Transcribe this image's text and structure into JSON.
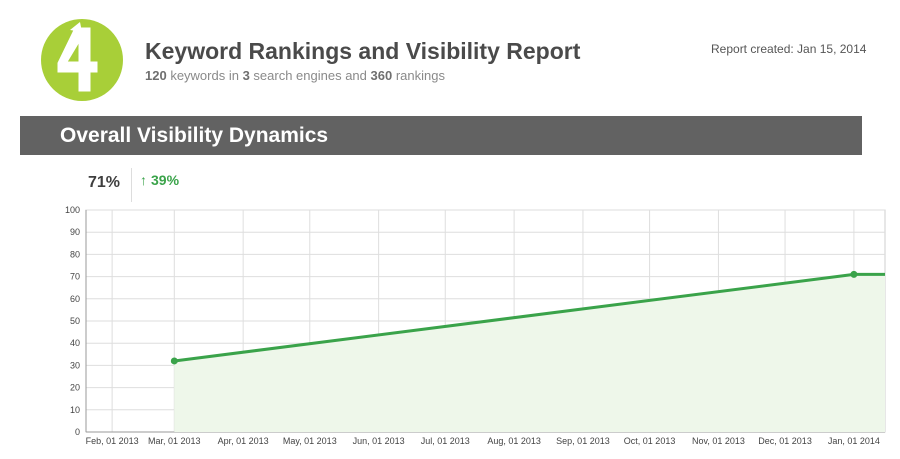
{
  "header": {
    "title": "Keyword Rankings and Visibility Report",
    "summary": {
      "keywords_count": "120",
      "keywords_text": " keywords in ",
      "engines_count": "3",
      "engines_text": " search engines and ",
      "rankings_count": "360",
      "rankings_text": " rankings"
    },
    "report_created": "Report created: Jan 15, 2014"
  },
  "logo": {
    "icon": "number-4-logo-icon",
    "text": "4",
    "color": "#a8cf38"
  },
  "section": {
    "title": "Overall Visibility Dynamics"
  },
  "kpi": {
    "value": "71%",
    "change": "39%",
    "change_icon": "arrow-up-icon",
    "change_color": "#3aa34a"
  },
  "chart_data": {
    "type": "area",
    "title": "",
    "xlabel": "",
    "ylabel": "",
    "x": [
      "Feb, 01 2013",
      "Mar, 01 2013",
      "Apr, 01 2013",
      "May, 01 2013",
      "Jun, 01 2013",
      "Jul, 01 2013",
      "Aug, 01 2013",
      "Sep, 01 2013",
      "Oct, 01 2013",
      "Nov, 01 2013",
      "Dec, 01 2013",
      "Jan, 01 2014"
    ],
    "ylim": [
      0,
      100
    ],
    "yticks": [
      0,
      10,
      20,
      30,
      40,
      50,
      60,
      70,
      80,
      90,
      100
    ],
    "grid": true,
    "series": [
      {
        "color": "#3aa34a",
        "fill": "#eef7ea",
        "points": [
          {
            "x": "Mar, 01 2013",
            "y": 32
          },
          {
            "x": "Jan, 01 2014",
            "y": 71
          },
          {
            "x": "Jan, 15 2014",
            "y": 71
          }
        ]
      }
    ]
  }
}
